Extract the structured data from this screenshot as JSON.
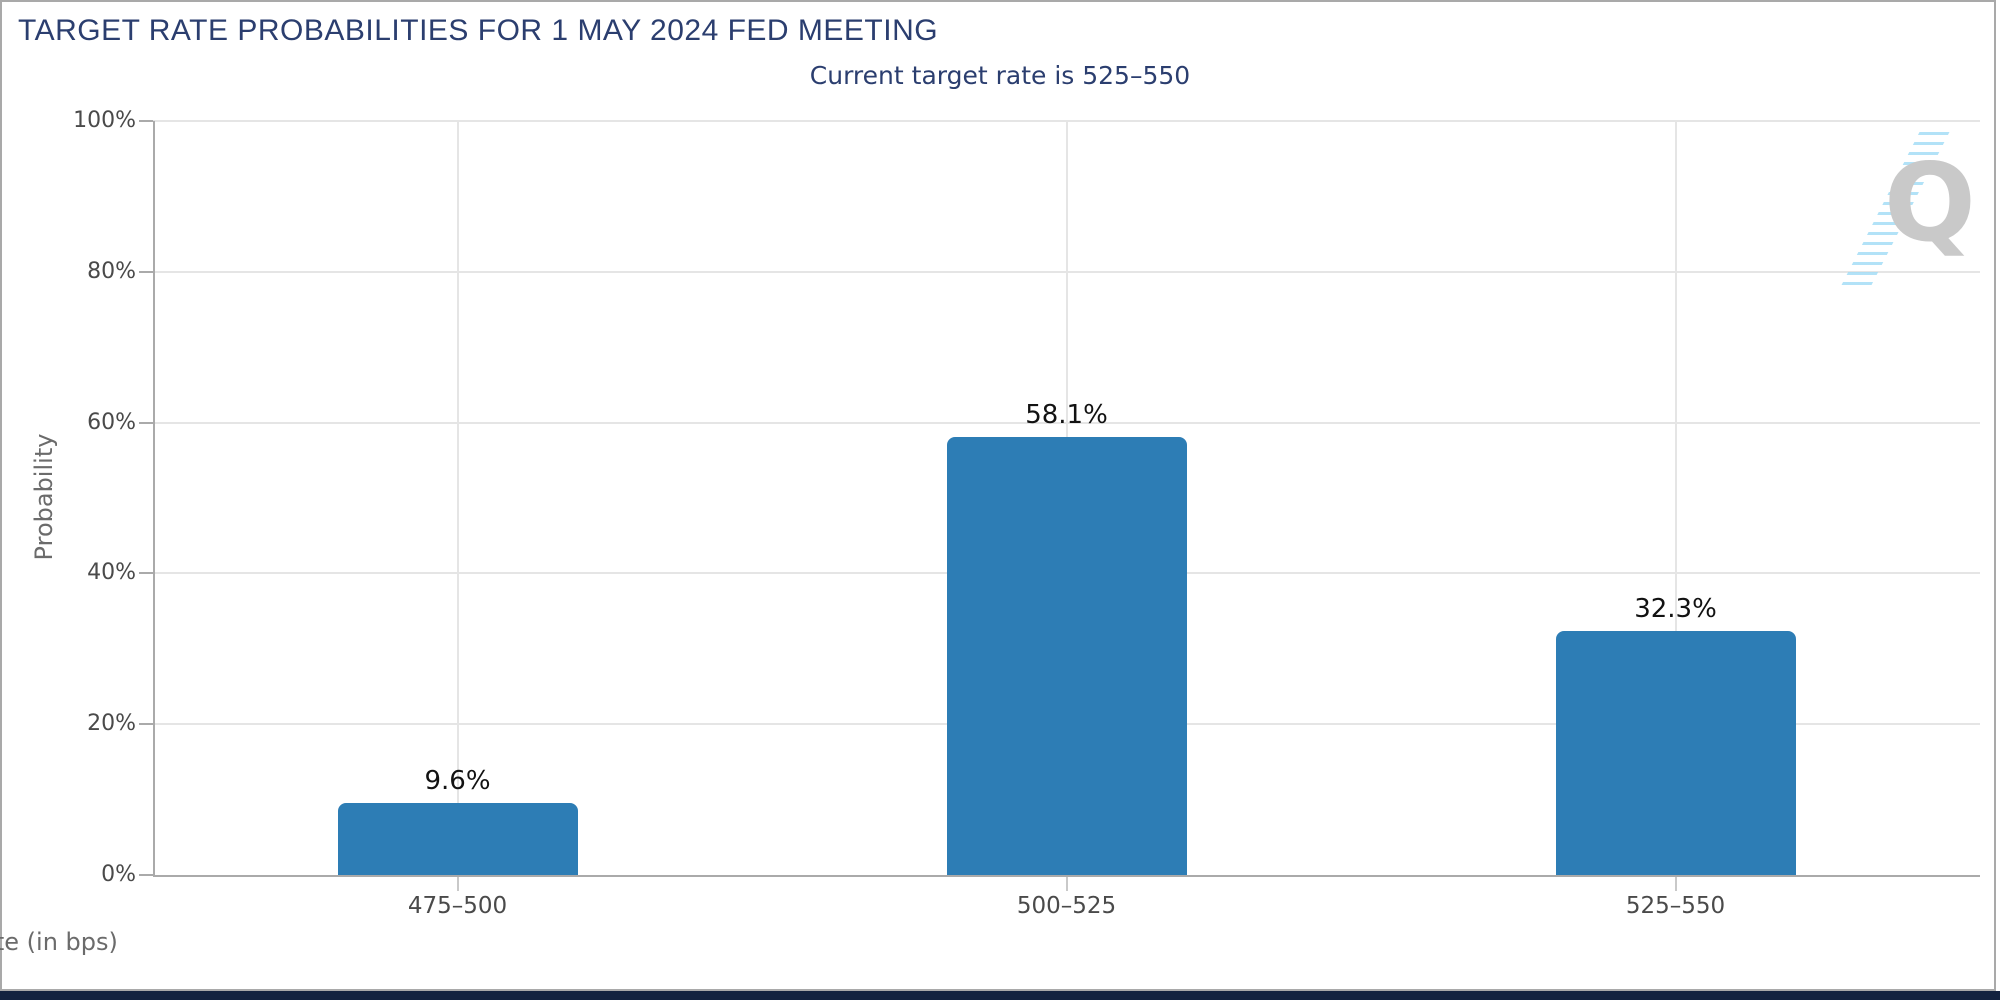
{
  "chart_data": {
    "type": "bar",
    "title": "TARGET RATE PROBABILITIES FOR 1 MAY 2024 FED MEETING",
    "subtitle": "Current target rate is 525–550",
    "categories": [
      "475–500",
      "500–525",
      "525–550"
    ],
    "values": [
      9.6,
      58.1,
      32.3
    ],
    "value_labels": [
      "9.6%",
      "58.1%",
      "32.3%"
    ],
    "xlabel": "Target Rate (in bps)",
    "ylabel": "Probability",
    "ylim": [
      0,
      100
    ],
    "yticks": [
      0,
      20,
      40,
      60,
      80,
      100
    ],
    "ytick_labels": [
      "0%",
      "20%",
      "40%",
      "60%",
      "80%",
      "100%"
    ],
    "grid": true,
    "legend": "none",
    "bar_color": "#2d7db5"
  },
  "logo": {
    "letter": "Q"
  },
  "colors": {
    "navy_text": "#2b3e6f",
    "bar": "#2d7db5",
    "grid": "#e5e5e5",
    "axis": "#aaaaaa",
    "tick_text": "#4a4a4a",
    "axis_title_text": "#6b6b6b",
    "value_label_text": "#121212",
    "frame_border": "#a9a9a9",
    "footer_bar": "#13223f",
    "logo_q": "#c9c9c9",
    "logo_stripes": "#a4ddf6"
  }
}
